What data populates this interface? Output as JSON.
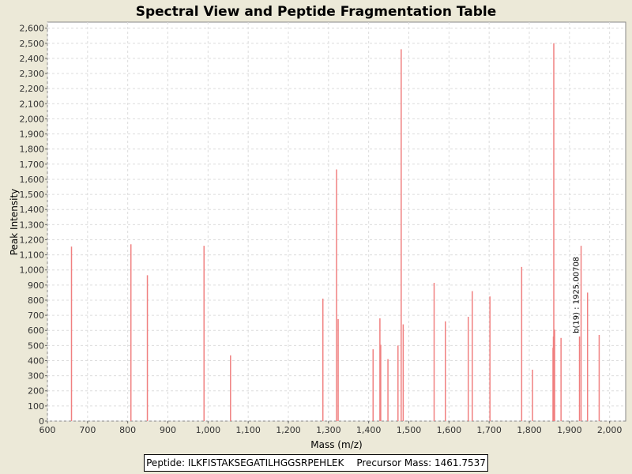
{
  "chart_data": {
    "type": "bar",
    "title": "Spectral View and Peptide Fragmentation Table",
    "xlabel": "Mass (m/z)",
    "ylabel": "Peak Intensity",
    "xlim": [
      600,
      2040
    ],
    "ylim": [
      0,
      2640
    ],
    "xticks": [
      600,
      700,
      800,
      900,
      1000,
      1100,
      1200,
      1300,
      1400,
      1500,
      1600,
      1700,
      1800,
      1900,
      2000
    ],
    "xtick_labels": [
      "600",
      "700",
      "800",
      "900",
      "1,000",
      "1,100",
      "1,200",
      "1,300",
      "1,400",
      "1,500",
      "1,600",
      "1,700",
      "1,800",
      "1,900",
      "2,000"
    ],
    "yticks": [
      0,
      100,
      200,
      300,
      400,
      500,
      600,
      700,
      800,
      900,
      1000,
      1100,
      1200,
      1300,
      1400,
      1500,
      1600,
      1700,
      1800,
      1900,
      2000,
      2100,
      2200,
      2300,
      2400,
      2500,
      2600
    ],
    "ytick_labels": [
      "0",
      "100",
      "200",
      "300",
      "400",
      "500",
      "600",
      "700",
      "800",
      "900",
      "1,000",
      "1,100",
      "1,200",
      "1,300",
      "1,400",
      "1,500",
      "1,600",
      "1,700",
      "1,800",
      "1,900",
      "2,000",
      "2,100",
      "2,200",
      "2,300",
      "2,400",
      "2,500",
      "2,600"
    ],
    "grid": true,
    "bar_color": "#f08080",
    "peaks": [
      {
        "mz": 660,
        "intensity": 1155
      },
      {
        "mz": 808,
        "intensity": 1170
      },
      {
        "mz": 849,
        "intensity": 965
      },
      {
        "mz": 990,
        "intensity": 1160
      },
      {
        "mz": 1056,
        "intensity": 435
      },
      {
        "mz": 1286,
        "intensity": 810
      },
      {
        "mz": 1320,
        "intensity": 1665
      },
      {
        "mz": 1324,
        "intensity": 675
      },
      {
        "mz": 1411,
        "intensity": 475
      },
      {
        "mz": 1428,
        "intensity": 680
      },
      {
        "mz": 1430,
        "intensity": 505
      },
      {
        "mz": 1448,
        "intensity": 410
      },
      {
        "mz": 1473,
        "intensity": 500
      },
      {
        "mz": 1481,
        "intensity": 2460
      },
      {
        "mz": 1486,
        "intensity": 640
      },
      {
        "mz": 1563,
        "intensity": 915
      },
      {
        "mz": 1591,
        "intensity": 660
      },
      {
        "mz": 1648,
        "intensity": 690
      },
      {
        "mz": 1658,
        "intensity": 860
      },
      {
        "mz": 1702,
        "intensity": 825
      },
      {
        "mz": 1781,
        "intensity": 1020
      },
      {
        "mz": 1808,
        "intensity": 340
      },
      {
        "mz": 1859,
        "intensity": 485
      },
      {
        "mz": 1860,
        "intensity": 560
      },
      {
        "mz": 1861,
        "intensity": 2500
      },
      {
        "mz": 1863,
        "intensity": 605
      },
      {
        "mz": 1879,
        "intensity": 550
      },
      {
        "mz": 1925,
        "intensity": 560
      },
      {
        "mz": 1929,
        "intensity": 1160
      },
      {
        "mz": 1945,
        "intensity": 850
      },
      {
        "mz": 1974,
        "intensity": 570
      }
    ],
    "annotations": [
      {
        "text": "b(19) : 1925.00708",
        "mz": 1925,
        "intensity": 560
      }
    ]
  },
  "legend": {
    "peptide": "Peptide: ILKFISTAKSEGATILHGGSRPEHLEK",
    "precursor": "Precursor Mass: 1461.7537"
  }
}
